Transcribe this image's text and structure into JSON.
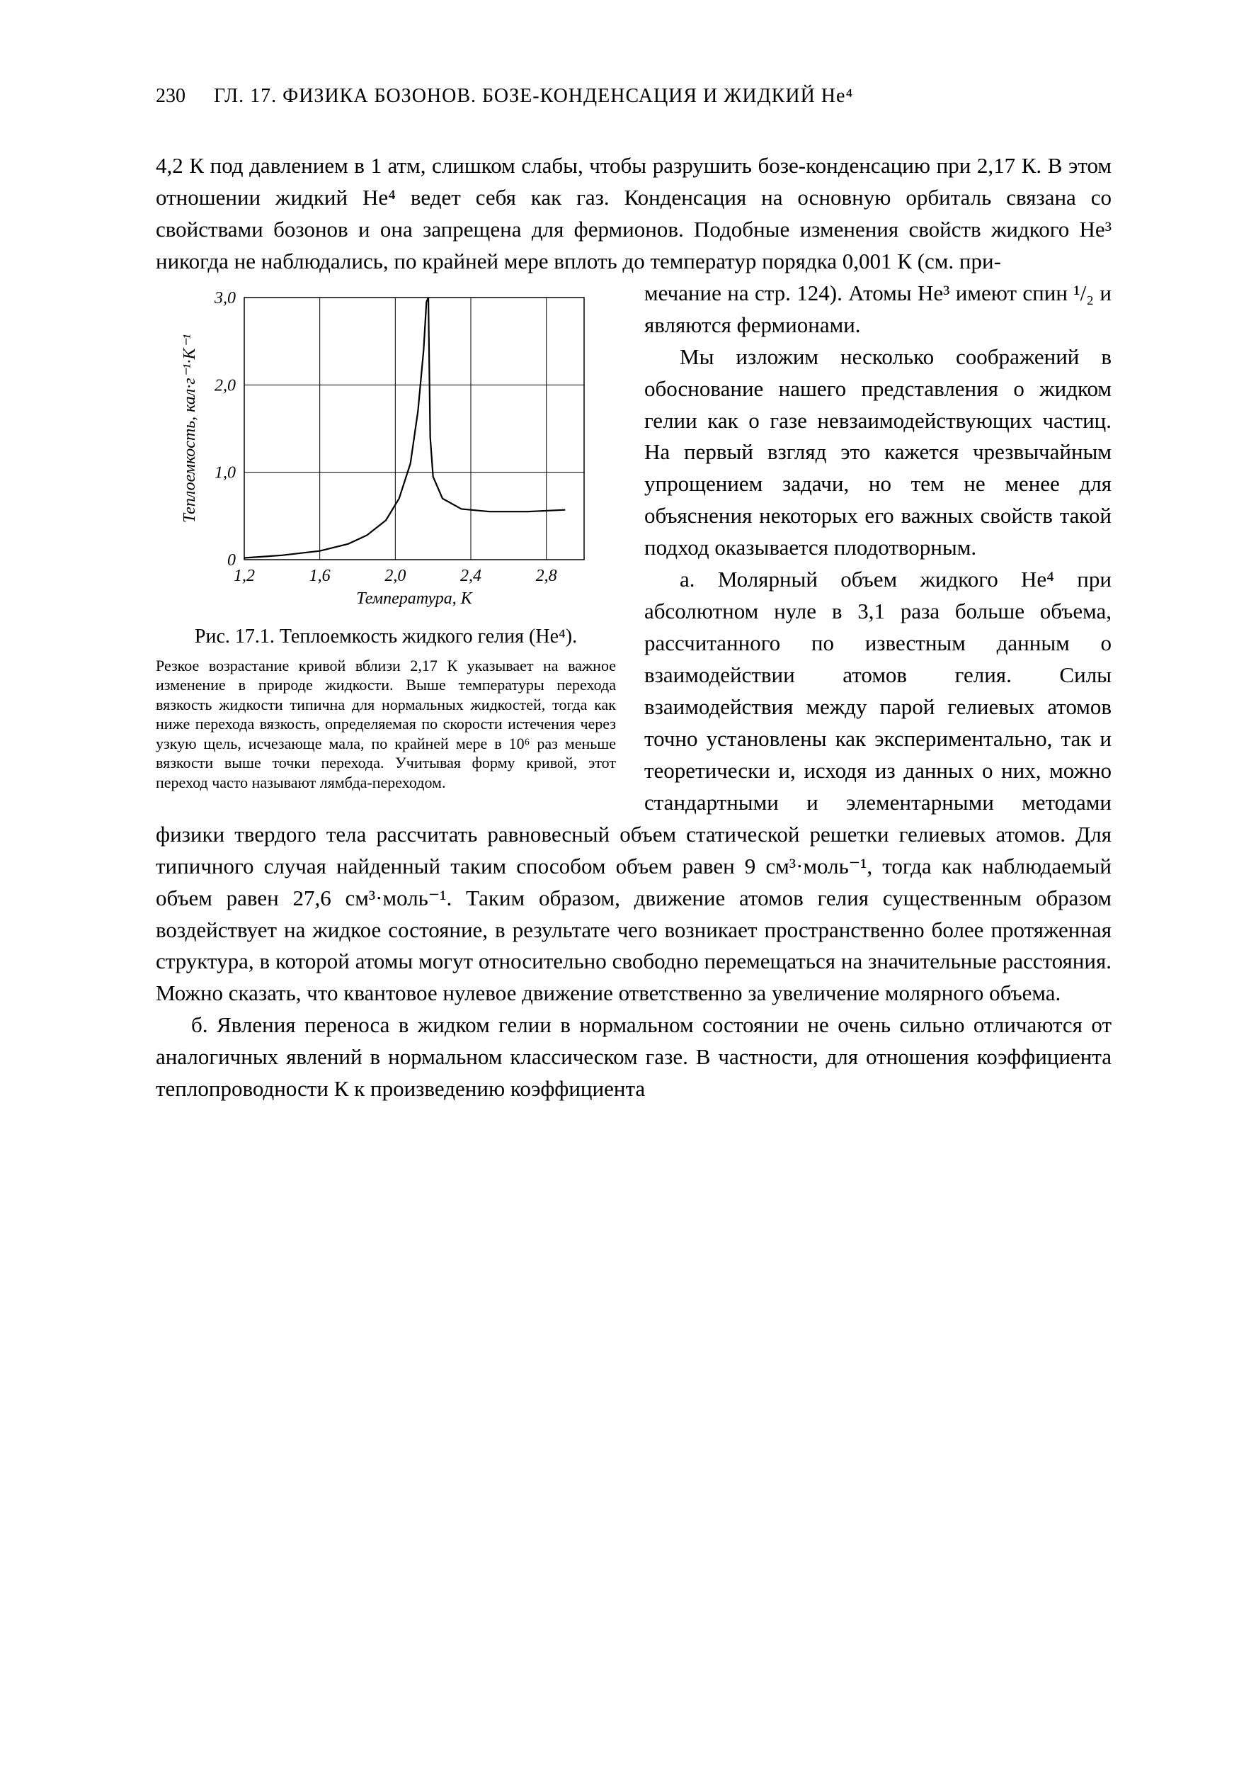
{
  "header": {
    "page_number": "230",
    "chapter": "ГЛ. 17. ФИЗИКА БОЗОНОВ. БОЗЕ-КОНДЕНСАЦИЯ И ЖИДКИЙ He⁴"
  },
  "paragraphs": {
    "p1a": "4,2 К под давлением в 1 атм, слишком слабы, чтобы разрушить бозе-конденсацию при 2,17 К. В этом отношении жидкий He⁴ ведет себя как газ. Конденсация на основную орбиталь связана со свойствами бозонов и она запрещена для фермионов. Подобные изменения свойств жидкого He³ никогда не наблюдались, по крайней мере вплоть до температур порядка 0,001 К (см. при-",
    "p1b": "мечание на стр. 124). Атомы He³ имеют спин ¹/₂ и являются фермионами.",
    "p2": "Мы изложим несколько соображений в обоснование нашего представления о жидком гелии как о газе невзаимодействующих частиц. На первый взгляд это кажется чрезвычайным упрощением задачи, но тем не менее для объяснения некоторых его важных свойств такой подход оказывается плодотворным.",
    "p3": "а. Молярный объем жидкого He⁴ при абсолютном нуле в 3,1 раза больше объема, рассчитанного по известным данным о взаимодействии атомов гелия. Силы взаимодействия между парой гелиевых атомов точно установлены как экспериментально, так и теоретически и, исходя из данных о них, можно стандартными и элементарными методами физики твердого тела рассчитать равновесный объем статической решетки гелиевых атомов. Для типичного случая найденный таким способом объем равен 9 см³·моль⁻¹, тогда как наблюдаемый объем равен 27,6 см³·моль⁻¹. Таким образом, движение атомов гелия существенным образом воздействует на жидкое состояние, в результате чего возникает пространственно более протяженная структура, в которой атомы могут относительно свободно перемещаться на значительные расстояния. Можно сказать, что квантовое нулевое движение ответственно за увеличение молярного объема.",
    "p4": "б. Явления переноса в жидком гелии в нормальном состоянии не очень сильно отличаются от аналогичных явлений в нормальном классическом газе. В частности, для отношения коэффициента теплопроводности К к произведению коэффициента"
  },
  "figure": {
    "caption_main": "Рис. 17.1. Теплоемкость жидкого гелия (He⁴).",
    "caption_sub": "Резкое возрастание кривой вблизи 2,17 К указывает на важное изменение в природе жидкости. Выше температуры перехода вязкость жидкости типична для нормальных жидкостей, тогда как ниже перехода вязкость, определяемая по скорости истечения через узкую щель, исчезающе мала, по крайней мере в 10⁶ раз меньше вязкости выше точки перехода. Учитывая форму кривой, этот переход часто называют лямбда-переходом."
  },
  "chart": {
    "type": "line",
    "xlabel": "Температура, К",
    "ylabel": "Теплоемкость, кал·г⁻¹·К⁻¹",
    "xlim": [
      1.2,
      3.0
    ],
    "ylim": [
      0,
      3.0
    ],
    "xticks": [
      1.2,
      1.6,
      2.0,
      2.4,
      2.8
    ],
    "xtick_labels": [
      "1,2",
      "1,6",
      "2,0",
      "2,4",
      "2,8"
    ],
    "yticks": [
      0,
      1.0,
      2.0,
      3.0
    ],
    "ytick_labels": [
      "0",
      "1,0",
      "2,0",
      "3,0"
    ],
    "background_color": "#ffffff",
    "grid_color": "#000000",
    "line_color": "#000000",
    "axis_color": "#000000",
    "line_width": 2.2,
    "grid_width": 1,
    "label_fontsize": 24,
    "tick_fontsize": 24,
    "data": [
      [
        1.2,
        0.02
      ],
      [
        1.4,
        0.05
      ],
      [
        1.6,
        0.1
      ],
      [
        1.75,
        0.18
      ],
      [
        1.85,
        0.28
      ],
      [
        1.95,
        0.45
      ],
      [
        2.02,
        0.7
      ],
      [
        2.08,
        1.1
      ],
      [
        2.12,
        1.7
      ],
      [
        2.15,
        2.4
      ],
      [
        2.165,
        2.95
      ],
      [
        2.175,
        3.0
      ],
      [
        2.185,
        1.4
      ],
      [
        2.2,
        0.95
      ],
      [
        2.25,
        0.7
      ],
      [
        2.35,
        0.58
      ],
      [
        2.5,
        0.55
      ],
      [
        2.7,
        0.55
      ],
      [
        2.9,
        0.57
      ]
    ]
  }
}
